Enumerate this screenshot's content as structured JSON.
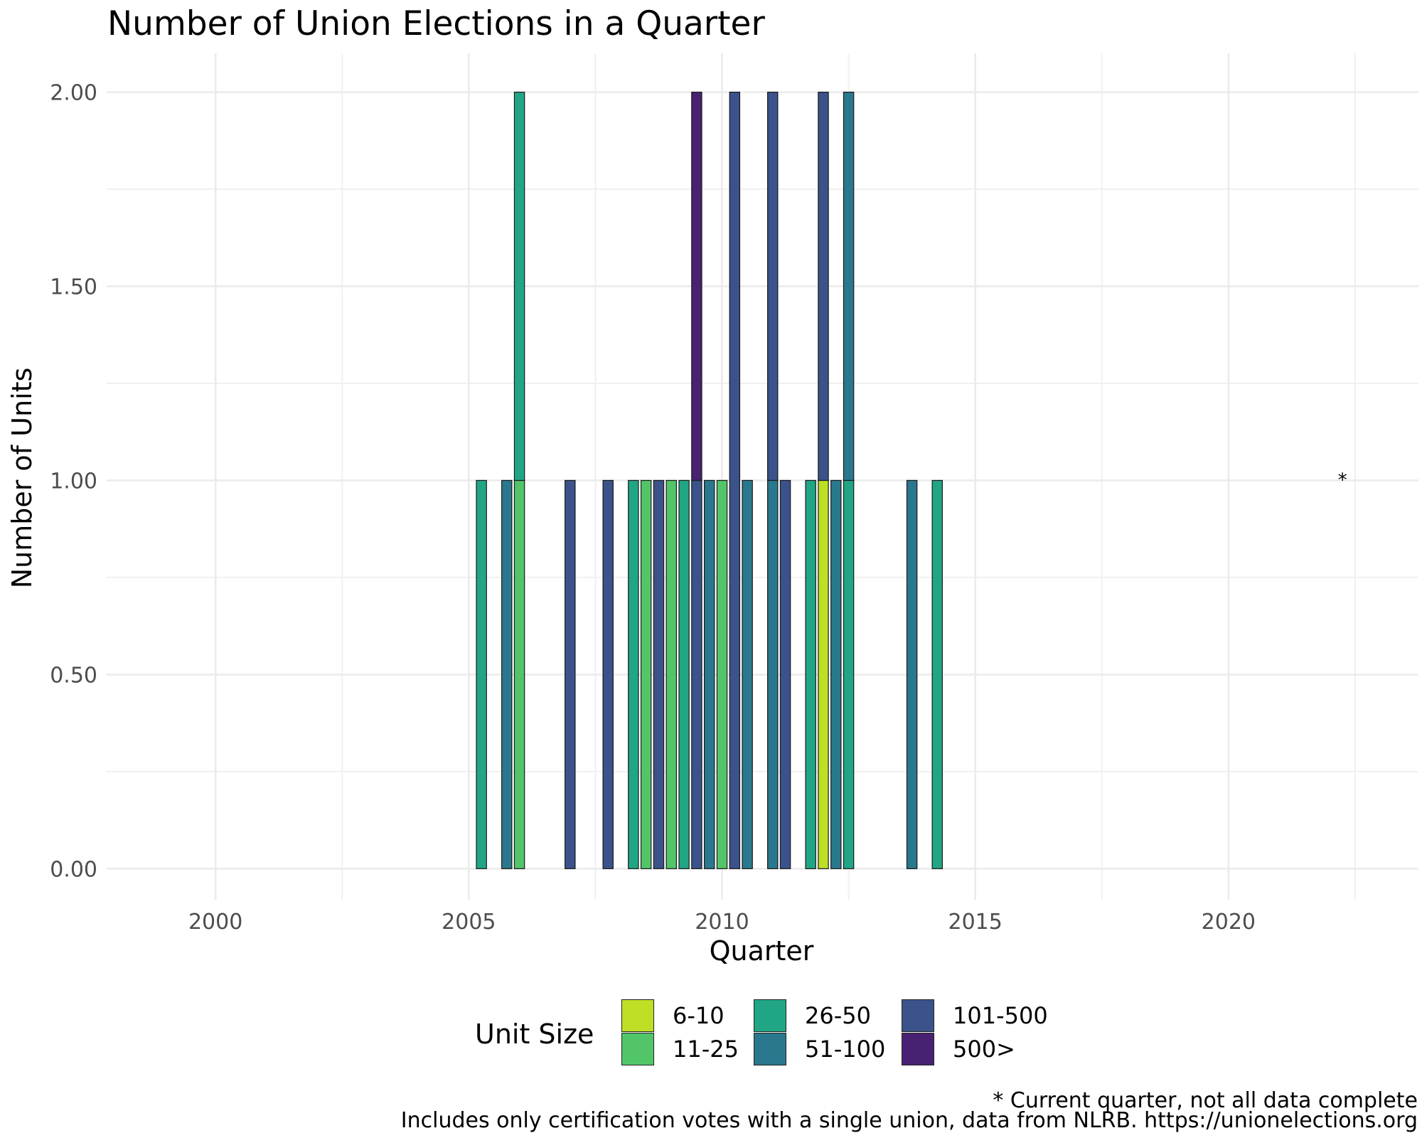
{
  "title": "Number of Union Elections in a Quarter",
  "colors": {
    "6-10": "#bddf26",
    "11-25": "#52c569",
    "26-50": "#21a685",
    "51-100": "#2a788e",
    "101-500": "#3b528b",
    "500>": "#482173"
  },
  "legend": {
    "title": "Unit Size",
    "items": [
      "6-10",
      "11-25",
      "26-50",
      "51-100",
      "101-500",
      "500>"
    ]
  },
  "captions": {
    "note": "* Current quarter, not all data complete",
    "source": "Includes only certification votes with a single union, data from NLRB. https://unionelections.org"
  },
  "chart_data": {
    "type": "bar",
    "stacked": true,
    "title": "Number of Union Elections in a Quarter",
    "xlabel": "Quarter",
    "ylabel": "Number of Units",
    "xlim": [
      1997.85,
      2023.75
    ],
    "ylim": [
      -0.08,
      2.1
    ],
    "x_ticks": [
      2000,
      2005,
      2010,
      2015,
      2020
    ],
    "x_tick_labels": [
      "2000",
      "2005",
      "2010",
      "2015",
      "2020"
    ],
    "y_ticks": [
      0,
      0.5,
      1,
      1.5,
      2
    ],
    "y_tick_labels": [
      "0.00",
      "0.50",
      "1.00",
      "1.50",
      "2.00"
    ],
    "bar_width_years": 0.2,
    "bars": [
      {
        "x": 2005.25,
        "segments": [
          {
            "size": "26-50",
            "value": 1
          }
        ]
      },
      {
        "x": 2005.75,
        "segments": [
          {
            "size": "51-100",
            "value": 1
          }
        ]
      },
      {
        "x": 2006.0,
        "segments": [
          {
            "size": "11-25",
            "value": 1
          },
          {
            "size": "26-50",
            "value": 1
          }
        ]
      },
      {
        "x": 2007.0,
        "segments": [
          {
            "size": "101-500",
            "value": 1
          }
        ]
      },
      {
        "x": 2007.75,
        "segments": [
          {
            "size": "101-500",
            "value": 1
          }
        ]
      },
      {
        "x": 2008.25,
        "segments": [
          {
            "size": "26-50",
            "value": 1
          }
        ]
      },
      {
        "x": 2008.5,
        "segments": [
          {
            "size": "11-25",
            "value": 1
          }
        ]
      },
      {
        "x": 2008.75,
        "segments": [
          {
            "size": "101-500",
            "value": 1
          }
        ]
      },
      {
        "x": 2009.0,
        "segments": [
          {
            "size": "11-25",
            "value": 1
          }
        ]
      },
      {
        "x": 2009.25,
        "segments": [
          {
            "size": "26-50",
            "value": 1
          }
        ]
      },
      {
        "x": 2009.5,
        "segments": [
          {
            "size": "101-500",
            "value": 1
          },
          {
            "size": "500>",
            "value": 1
          }
        ]
      },
      {
        "x": 2009.75,
        "segments": [
          {
            "size": "51-100",
            "value": 1
          }
        ]
      },
      {
        "x": 2010.0,
        "segments": [
          {
            "size": "11-25",
            "value": 1
          }
        ]
      },
      {
        "x": 2010.25,
        "segments": [
          {
            "size": "101-500",
            "value": 2
          }
        ]
      },
      {
        "x": 2010.5,
        "segments": [
          {
            "size": "51-100",
            "value": 1
          }
        ]
      },
      {
        "x": 2011.0,
        "segments": [
          {
            "size": "51-100",
            "value": 1
          },
          {
            "size": "101-500",
            "value": 1
          }
        ]
      },
      {
        "x": 2011.25,
        "segments": [
          {
            "size": "101-500",
            "value": 1
          }
        ]
      },
      {
        "x": 2011.75,
        "segments": [
          {
            "size": "26-50",
            "value": 1
          }
        ]
      },
      {
        "x": 2012.0,
        "segments": [
          {
            "size": "6-10",
            "value": 1
          },
          {
            "size": "101-500",
            "value": 1
          }
        ]
      },
      {
        "x": 2012.25,
        "segments": [
          {
            "size": "51-100",
            "value": 1
          }
        ]
      },
      {
        "x": 2012.5,
        "segments": [
          {
            "size": "26-50",
            "value": 1
          },
          {
            "size": "51-100",
            "value": 1
          }
        ]
      },
      {
        "x": 2013.75,
        "segments": [
          {
            "size": "51-100",
            "value": 1
          }
        ]
      },
      {
        "x": 2014.25,
        "segments": [
          {
            "size": "26-50",
            "value": 1
          }
        ]
      }
    ],
    "annotation": {
      "text": "*",
      "x": 2022.25,
      "y": 1.0
    },
    "grid": true,
    "legend_position": "bottom"
  }
}
